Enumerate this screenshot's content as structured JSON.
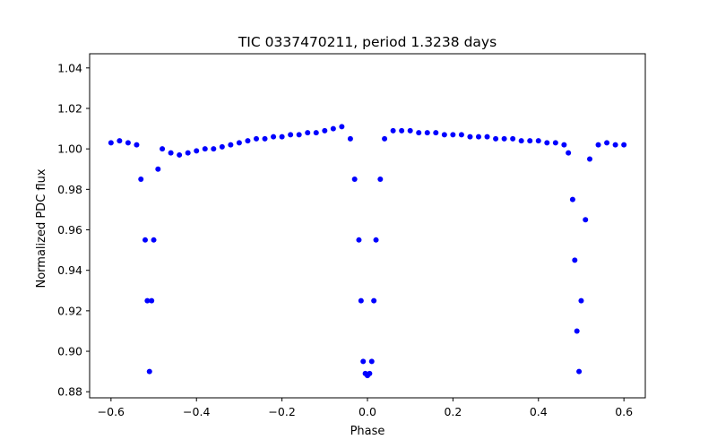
{
  "chart_data": {
    "type": "scatter",
    "title": "TIC 0337470211, period 1.3238 days",
    "xlabel": "Phase",
    "ylabel": "Normalized PDC flux",
    "xlim": [
      -0.65,
      0.65
    ],
    "ylim": [
      0.877,
      1.047
    ],
    "x_ticks": [
      -0.6,
      -0.4,
      -0.2,
      0.0,
      0.2,
      0.4,
      0.6
    ],
    "x_tick_labels": [
      "−0.6",
      "−0.4",
      "−0.2",
      "0.0",
      "0.2",
      "0.4",
      "0.6"
    ],
    "y_ticks": [
      0.88,
      0.9,
      0.92,
      0.94,
      0.96,
      0.98,
      1.0,
      1.02,
      1.04
    ],
    "y_tick_labels": [
      "0.88",
      "0.90",
      "0.92",
      "0.94",
      "0.96",
      "0.98",
      "1.00",
      "1.02",
      "1.04"
    ],
    "grid": false,
    "series": [
      {
        "color": "#0000ff",
        "marker": "circle",
        "x": [
          -0.6,
          -0.58,
          -0.56,
          -0.54,
          -0.53,
          -0.52,
          -0.515,
          -0.51,
          -0.505,
          -0.5,
          -0.49,
          -0.48,
          -0.46,
          -0.44,
          -0.42,
          -0.4,
          -0.38,
          -0.36,
          -0.34,
          -0.32,
          -0.3,
          -0.28,
          -0.26,
          -0.24,
          -0.22,
          -0.2,
          -0.18,
          -0.16,
          -0.14,
          -0.12,
          -0.1,
          -0.08,
          -0.06,
          -0.04,
          -0.03,
          -0.02,
          -0.015,
          -0.01,
          -0.005,
          0.0,
          0.005,
          0.01,
          0.015,
          0.02,
          0.03,
          0.04,
          0.06,
          0.08,
          0.1,
          0.12,
          0.14,
          0.16,
          0.18,
          0.2,
          0.22,
          0.24,
          0.26,
          0.28,
          0.3,
          0.32,
          0.34,
          0.36,
          0.38,
          0.4,
          0.42,
          0.44,
          0.46,
          0.47,
          0.48,
          0.485,
          0.49,
          0.495,
          0.5,
          0.51,
          0.52,
          0.54,
          0.56,
          0.58,
          0.6
        ],
        "y": [
          1.003,
          1.004,
          1.003,
          1.002,
          0.985,
          0.955,
          0.925,
          0.89,
          0.925,
          0.955,
          0.99,
          1.0,
          0.998,
          0.997,
          0.998,
          0.999,
          1.0,
          1.0,
          1.001,
          1.002,
          1.003,
          1.004,
          1.005,
          1.005,
          1.006,
          1.006,
          1.007,
          1.007,
          1.008,
          1.008,
          1.009,
          1.01,
          1.011,
          1.005,
          0.985,
          0.955,
          0.925,
          0.895,
          0.889,
          0.888,
          0.889,
          0.895,
          0.925,
          0.955,
          0.985,
          1.005,
          1.009,
          1.009,
          1.009,
          1.008,
          1.008,
          1.008,
          1.007,
          1.007,
          1.007,
          1.006,
          1.006,
          1.006,
          1.005,
          1.005,
          1.005,
          1.004,
          1.004,
          1.004,
          1.003,
          1.003,
          1.002,
          0.998,
          0.975,
          0.945,
          0.91,
          0.89,
          0.925,
          0.965,
          0.995,
          1.002,
          1.003,
          1.002,
          1.002
        ]
      }
    ]
  }
}
